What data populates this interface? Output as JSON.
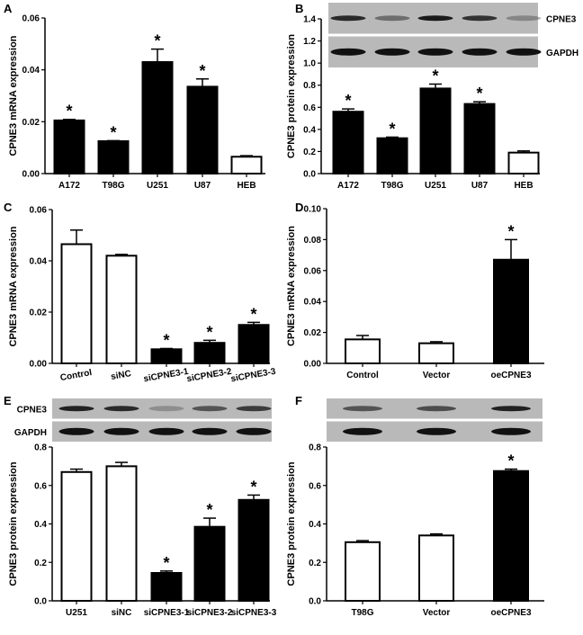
{
  "chart_data": [
    {
      "panel": "A",
      "type": "bar",
      "ylabel": "CPNE3 mRNA expression",
      "categories": [
        "A172",
        "T98G",
        "U251",
        "U87",
        "HEB"
      ],
      "values": [
        0.0205,
        0.0125,
        0.043,
        0.0335,
        0.0065
      ],
      "errors": [
        0.0004,
        0.0002,
        0.005,
        0.003,
        0.0004
      ],
      "filled": [
        true,
        true,
        true,
        true,
        false
      ],
      "significant": [
        true,
        true,
        true,
        true,
        false
      ],
      "ylim": [
        0,
        0.06
      ],
      "yticks": [
        "0.00",
        "0.02",
        "0.04",
        "0.06"
      ],
      "rotate_labels": false
    },
    {
      "panel": "B",
      "type": "bar",
      "ylabel": "CPNE3 protein expression",
      "categories": [
        "A172",
        "T98G",
        "U251",
        "U87",
        "HEB"
      ],
      "values": [
        0.56,
        0.32,
        0.77,
        0.63,
        0.19
      ],
      "errors": [
        0.025,
        0.01,
        0.04,
        0.02,
        0.015
      ],
      "filled": [
        true,
        true,
        true,
        true,
        false
      ],
      "significant": [
        true,
        true,
        true,
        true,
        false
      ],
      "ylim": [
        0,
        1.4
      ],
      "yticks": [
        "0.0",
        "0.2",
        "0.4",
        "0.6",
        "0.8",
        "1.0",
        "1.2",
        "1.4"
      ],
      "rotate_labels": false,
      "blot_labels": [
        "CPNE3",
        "GAPDH"
      ]
    },
    {
      "panel": "C",
      "type": "bar",
      "ylabel": "CPNE3 mRNA expression",
      "categories": [
        "Control",
        "siNC",
        "siCPNE3-1",
        "siCPNE3-2",
        "siCPNE3-3"
      ],
      "values": [
        0.0465,
        0.042,
        0.0055,
        0.008,
        0.015
      ],
      "errors": [
        0.0055,
        0.0005,
        0.0003,
        0.001,
        0.001
      ],
      "filled": [
        false,
        false,
        true,
        true,
        true
      ],
      "significant": [
        false,
        false,
        true,
        true,
        true
      ],
      "ylim": [
        0,
        0.06
      ],
      "yticks": [
        "0.00",
        "0.02",
        "0.04",
        "0.06"
      ],
      "rotate_labels": true
    },
    {
      "panel": "D",
      "type": "bar",
      "ylabel": "CPNE3 mRNA expression",
      "categories": [
        "Control",
        "Vector",
        "oeCPNE3"
      ],
      "values": [
        0.0155,
        0.013,
        0.067
      ],
      "errors": [
        0.0025,
        0.001,
        0.013
      ],
      "filled": [
        false,
        false,
        true
      ],
      "significant": [
        false,
        false,
        true
      ],
      "ylim": [
        0,
        0.1
      ],
      "yticks": [
        "0.00",
        "0.02",
        "0.04",
        "0.06",
        "0.08",
        "0.10"
      ],
      "rotate_labels": false
    },
    {
      "panel": "E",
      "type": "bar",
      "ylabel": "CPNE3 protein expression",
      "categories": [
        "U251",
        "siNC",
        "siCPNE3-1",
        "siCPNE3-2",
        "siCPNE3-3"
      ],
      "values": [
        0.67,
        0.7,
        0.145,
        0.385,
        0.525
      ],
      "errors": [
        0.015,
        0.02,
        0.01,
        0.045,
        0.025
      ],
      "filled": [
        false,
        false,
        true,
        true,
        true
      ],
      "significant": [
        false,
        false,
        true,
        true,
        true
      ],
      "ylim": [
        0,
        0.8
      ],
      "yticks": [
        "0.0",
        "0.2",
        "0.4",
        "0.6",
        "0.8"
      ],
      "rotate_labels": false,
      "blot_labels": [
        "CPNE3",
        "GAPDH"
      ]
    },
    {
      "panel": "F",
      "type": "bar",
      "ylabel": "CPNE3 protein expression",
      "categories": [
        "T98G",
        "Vector",
        "oeCPNE3"
      ],
      "values": [
        0.305,
        0.34,
        0.675
      ],
      "errors": [
        0.008,
        0.008,
        0.01
      ],
      "filled": [
        false,
        false,
        true
      ],
      "significant": [
        false,
        false,
        true
      ],
      "ylim": [
        0,
        0.8
      ],
      "yticks": [
        "0.0",
        "0.2",
        "0.4",
        "0.6",
        "0.8"
      ],
      "rotate_labels": false
    }
  ],
  "significance_marker": "*"
}
